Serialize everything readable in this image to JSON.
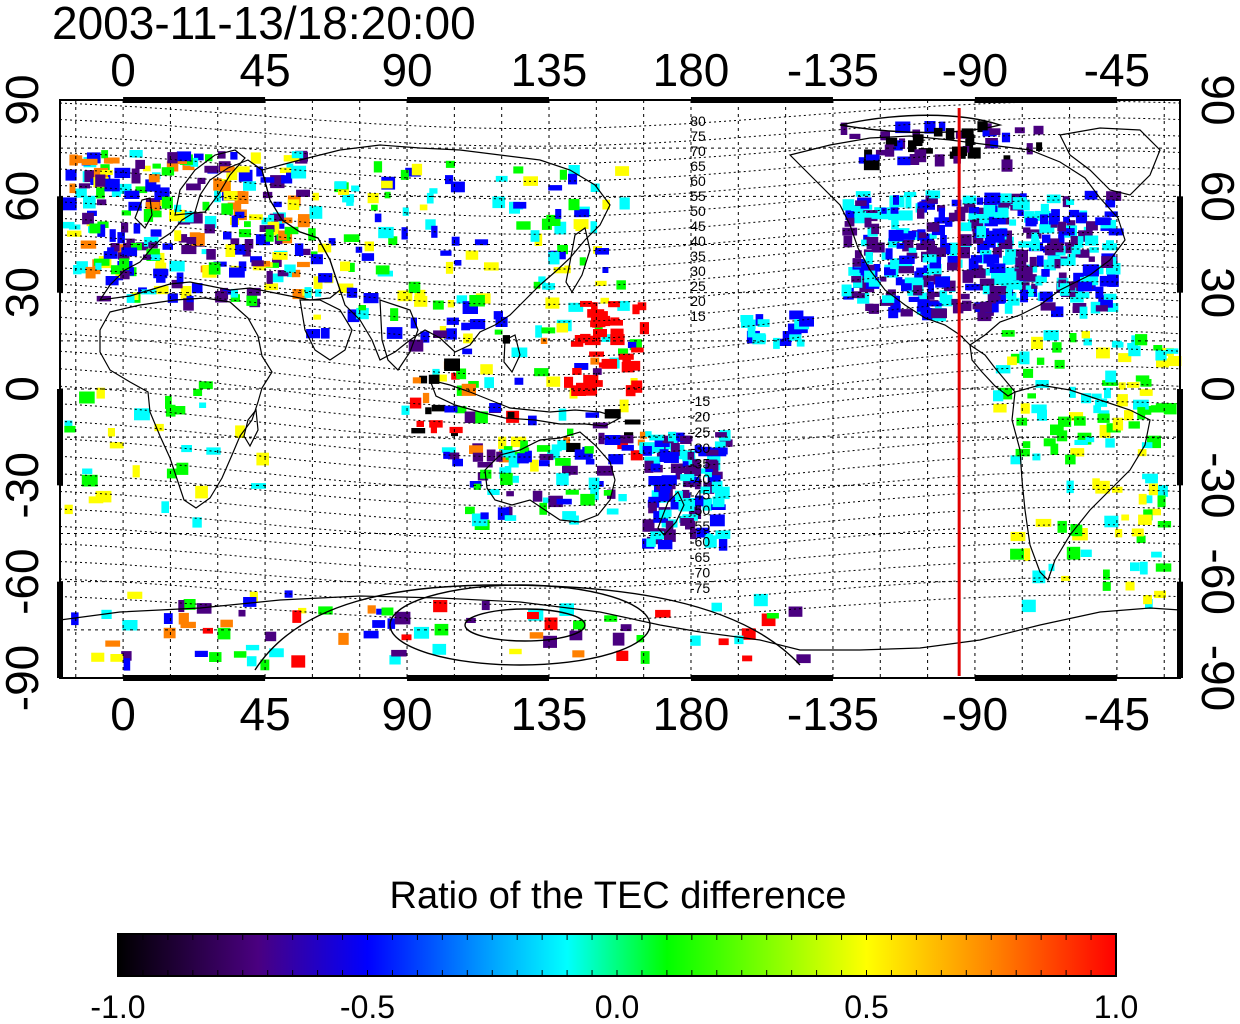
{
  "title": "2003-11-13/18:20:00",
  "map": {
    "top_lon_labels": [
      "0",
      "45",
      "90",
      "135",
      "180",
      "-135",
      "-90",
      "-45"
    ],
    "bottom_lon_labels": [
      "0",
      "45",
      "90",
      "135",
      "180",
      "-135",
      "-90",
      "-45"
    ],
    "left_lat_labels": [
      "90",
      "60",
      "30",
      "0",
      "-30",
      "-60",
      "-90"
    ],
    "right_lat_labels": [
      "90",
      "60",
      "30",
      "0",
      "-30",
      "-60",
      "-90"
    ],
    "lon_ticks_deg": [
      0,
      45,
      90,
      135,
      180,
      225,
      270,
      315
    ],
    "lat_ticks_deg": [
      90,
      60,
      30,
      0,
      -30,
      -60,
      -90
    ],
    "lon_range_deg": [
      -20,
      335
    ],
    "lat_range_deg": [
      -90,
      90
    ],
    "marker_longitude_deg": -95,
    "marker_color": "#e00000",
    "north_contour_labels": [
      "80",
      "75",
      "70",
      "65",
      "60",
      "55",
      "50",
      "45",
      "40",
      "35",
      "30",
      "25",
      "20",
      "15"
    ],
    "south_contour_labels": [
      "-15",
      "-20",
      "-25",
      "-30",
      "-35",
      "-40",
      "-45",
      "-50",
      "-55",
      "-60",
      "-65",
      "-70",
      "-75"
    ]
  },
  "colorbar": {
    "label": "Ratio of the TEC difference",
    "min": -1.0,
    "max": 1.0,
    "tick_labels": [
      "-1.0",
      "-0.5",
      "0.0",
      "0.5",
      "1.0"
    ],
    "colors": [
      "#000000",
      "#4a0080",
      "#0000ff",
      "#00ffff",
      "#00ff00",
      "#ffff00",
      "#ff8000",
      "#ff0000"
    ]
  }
}
